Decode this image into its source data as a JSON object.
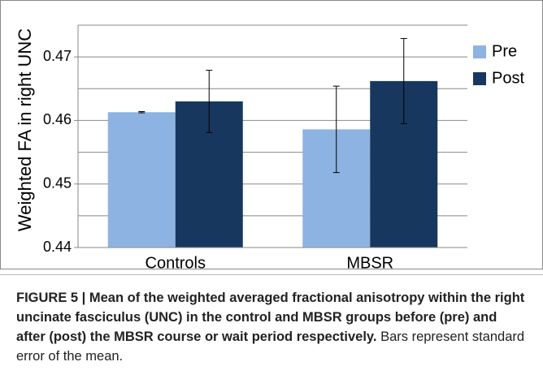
{
  "chart_data": {
    "type": "bar",
    "ylabel": "Weighted FA in right UNC",
    "categories": [
      "Controls",
      "MBSR"
    ],
    "series": [
      {
        "name": "Pre",
        "color": "#8db3e2",
        "values": [
          0.4613,
          0.4586
        ],
        "errors": [
          0.0001,
          0.0068
        ]
      },
      {
        "name": "Post",
        "color": "#17375e",
        "values": [
          0.463,
          0.4662
        ],
        "errors": [
          0.0049,
          0.0067
        ]
      }
    ],
    "ylim": [
      0.44,
      0.475
    ],
    "yticks": [
      0.44,
      0.45,
      0.46,
      0.47
    ],
    "minor_yticks": [
      0.445,
      0.455,
      0.465,
      0.475
    ],
    "grid": true,
    "legend": "right"
  },
  "caption": {
    "bold": "FIGURE 5 | Mean of the weighted averaged fractional anisotropy within the right uncinate fasciculus (UNC) in the control and MBSR groups before (pre) and after (post) the MBSR course or wait period respectively.",
    "text": "Bars represent standard error of the mean."
  }
}
